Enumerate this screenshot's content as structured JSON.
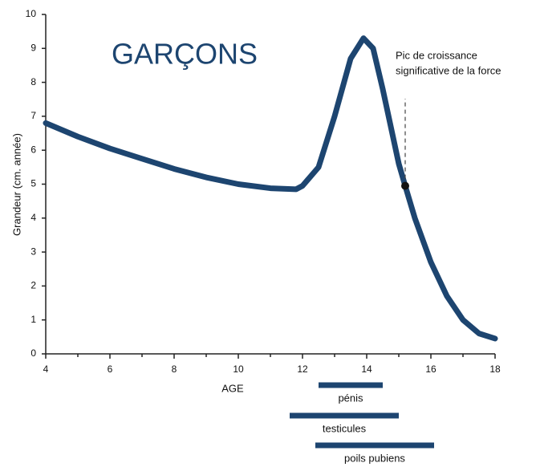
{
  "chart_data": {
    "type": "line",
    "title": "GARÇONS",
    "x_label": "AGE",
    "y_label": "Grandeur (cm. année)",
    "x": [
      4,
      5,
      6,
      7,
      8,
      9,
      10,
      11,
      11.8,
      12,
      12.5,
      13,
      13.5,
      13.9,
      14.2,
      14.5,
      15,
      15.2,
      15.5,
      16,
      16.5,
      17,
      17.5,
      18
    ],
    "series": [
      {
        "name": "GARÇONS",
        "color": "#1d4570",
        "values": [
          6.8,
          6.4,
          6.05,
          5.75,
          5.45,
          5.2,
          5.0,
          4.88,
          4.85,
          4.95,
          5.5,
          7.0,
          8.7,
          9.3,
          9.0,
          7.8,
          5.6,
          4.95,
          4.0,
          2.7,
          1.7,
          1.0,
          0.6,
          0.45
        ]
      }
    ],
    "annotation": {
      "lines": [
        "Pic de croissance",
        "significative de la force"
      ],
      "x": 15.2,
      "y": 4.95
    },
    "ranges": [
      {
        "label": "pénis",
        "start": 12.5,
        "end": 14.5
      },
      {
        "label": "testicules",
        "start": 11.6,
        "end": 15.0
      },
      {
        "label": "poils pubiens",
        "start": 12.4,
        "end": 16.1
      }
    ],
    "range_color": "#1d4570",
    "xlim": [
      4,
      18
    ],
    "xticks": [
      4,
      6,
      8,
      10,
      12,
      14,
      16,
      18
    ],
    "xminorticks": [
      5,
      7,
      9,
      11,
      13,
      15,
      17
    ],
    "ylim": [
      0,
      10
    ],
    "yticks": [
      0,
      1,
      2,
      3,
      4,
      5,
      6,
      7,
      8,
      9,
      10
    ]
  }
}
